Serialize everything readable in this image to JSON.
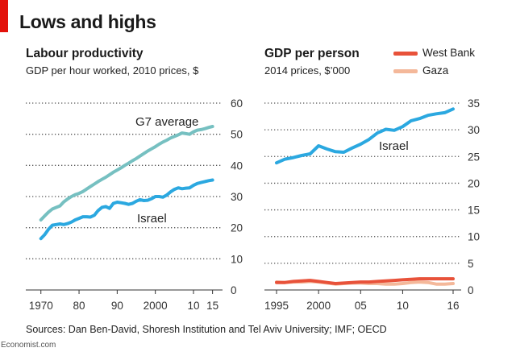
{
  "title": "Lows and highs",
  "source": "Sources: Dan Ben-David, Shoresh Institution and Tel Aviv University; IMF; OECD",
  "brand": "Economist.com",
  "colors": {
    "g7": "#76c0c1",
    "israel": "#2ba8e0",
    "west_bank": "#e8523a",
    "gaza": "#f4b89a",
    "accent": "#e3120b"
  },
  "chart_data": [
    {
      "type": "line",
      "title": "Labour productivity",
      "subtitle": "GDP per hour worked, 2010 prices, $",
      "xlabel": "",
      "ylabel": "",
      "xlim": [
        1969,
        2015.5
      ],
      "ylim": [
        0,
        60
      ],
      "x_ticks": [
        1970,
        1980,
        1990,
        2000,
        2010,
        2015
      ],
      "x_tick_labels": [
        "1970",
        "80",
        "90",
        "2000",
        "10",
        "15"
      ],
      "y_ticks": [
        0,
        10,
        20,
        30,
        40,
        50,
        60
      ],
      "y_tick_labels": [
        "0",
        "10",
        "20",
        "30",
        "40",
        "50",
        "60"
      ],
      "series": [
        {
          "name": "G7 average",
          "color_key": "g7",
          "x": [
            1970,
            1971,
            1972,
            1973,
            1974,
            1975,
            1976,
            1977,
            1978,
            1979,
            1980,
            1981,
            1982,
            1983,
            1984,
            1985,
            1986,
            1987,
            1988,
            1989,
            1990,
            1991,
            1992,
            1993,
            1994,
            1995,
            1996,
            1997,
            1998,
            1999,
            2000,
            2001,
            2002,
            2003,
            2004,
            2005,
            2006,
            2007,
            2008,
            2009,
            2010,
            2011,
            2012,
            2013,
            2014,
            2015
          ],
          "values": [
            22.5,
            23.8,
            25.0,
            26.0,
            26.5,
            27.0,
            28.3,
            29.2,
            30.0,
            30.6,
            31.0,
            31.6,
            32.4,
            33.2,
            34.0,
            34.8,
            35.5,
            36.2,
            37.0,
            37.8,
            38.5,
            39.2,
            40.0,
            40.7,
            41.5,
            42.2,
            43.0,
            43.8,
            44.6,
            45.3,
            46.0,
            46.8,
            47.5,
            48.1,
            48.8,
            49.3,
            49.8,
            50.4,
            50.2,
            50.0,
            50.8,
            51.3,
            51.5,
            51.8,
            52.2,
            52.5
          ]
        },
        {
          "name": "Israel",
          "color_key": "israel",
          "x": [
            1970,
            1971,
            1972,
            1973,
            1974,
            1975,
            1976,
            1977,
            1978,
            1979,
            1980,
            1981,
            1982,
            1983,
            1984,
            1985,
            1986,
            1987,
            1988,
            1989,
            1990,
            1991,
            1992,
            1993,
            1994,
            1995,
            1996,
            1997,
            1998,
            1999,
            2000,
            2001,
            2002,
            2003,
            2004,
            2005,
            2006,
            2007,
            2008,
            2009,
            2010,
            2011,
            2012,
            2013,
            2014,
            2015
          ],
          "values": [
            16.5,
            17.8,
            19.5,
            20.8,
            21.0,
            21.2,
            21.0,
            21.3,
            21.8,
            22.5,
            23.0,
            23.5,
            23.5,
            23.4,
            24.0,
            25.5,
            26.5,
            26.8,
            26.2,
            27.8,
            28.2,
            28.0,
            27.8,
            27.5,
            27.8,
            28.5,
            29.0,
            28.7,
            28.8,
            29.3,
            30.0,
            30.0,
            29.8,
            30.5,
            31.5,
            32.3,
            32.8,
            32.5,
            32.7,
            32.8,
            33.6,
            34.2,
            34.5,
            34.8,
            35.1,
            35.3
          ]
        }
      ],
      "annotations": [
        "G7 average",
        "Israel"
      ]
    },
    {
      "type": "line",
      "title": "GDP per person",
      "subtitle": "2014 prices, $’000",
      "xlabel": "",
      "ylabel": "",
      "xlim": [
        1995,
        2016
      ],
      "ylim": [
        0,
        35
      ],
      "x_ticks": [
        1995,
        2000,
        2005,
        2010,
        2016
      ],
      "x_tick_labels": [
        "1995",
        "2000",
        "05",
        "10",
        "16"
      ],
      "y_ticks": [
        0,
        5,
        10,
        15,
        20,
        25,
        30,
        35
      ],
      "y_tick_labels": [
        "0",
        "5",
        "10",
        "15",
        "20",
        "25",
        "30",
        "35"
      ],
      "legend": [
        "West Bank",
        "Gaza"
      ],
      "series": [
        {
          "name": "Israel",
          "color_key": "israel",
          "x": [
            1995,
            1996,
            1997,
            1998,
            1999,
            2000,
            2001,
            2002,
            2003,
            2004,
            2005,
            2006,
            2007,
            2008,
            2009,
            2010,
            2011,
            2012,
            2013,
            2014,
            2015,
            2016
          ],
          "values": [
            23.8,
            24.5,
            24.8,
            25.2,
            25.5,
            27.0,
            26.4,
            25.9,
            25.8,
            26.6,
            27.3,
            28.2,
            29.4,
            30.1,
            29.9,
            30.6,
            31.7,
            32.1,
            32.7,
            33.0,
            33.2,
            33.9
          ]
        },
        {
          "name": "West Bank",
          "color_key": "west_bank",
          "x": [
            1995,
            1996,
            1997,
            1998,
            1999,
            2000,
            2001,
            2002,
            2003,
            2004,
            2005,
            2006,
            2007,
            2008,
            2009,
            2010,
            2011,
            2012,
            2013,
            2014,
            2015,
            2016
          ],
          "values": [
            1.4,
            1.4,
            1.6,
            1.7,
            1.8,
            1.6,
            1.4,
            1.2,
            1.3,
            1.4,
            1.5,
            1.5,
            1.6,
            1.7,
            1.8,
            1.9,
            2.0,
            2.1,
            2.1,
            2.1,
            2.1,
            2.1
          ]
        },
        {
          "name": "Gaza",
          "color_key": "gaza",
          "x": [
            1995,
            1996,
            1997,
            1998,
            1999,
            2000,
            2001,
            2002,
            2003,
            2004,
            2005,
            2006,
            2007,
            2008,
            2009,
            2010,
            2011,
            2012,
            2013,
            2014,
            2015,
            2016
          ],
          "values": [
            1.5,
            1.4,
            1.5,
            1.5,
            1.6,
            1.5,
            1.3,
            1.1,
            1.2,
            1.3,
            1.3,
            1.2,
            1.2,
            1.1,
            1.1,
            1.2,
            1.4,
            1.5,
            1.4,
            1.1,
            1.1,
            1.2
          ]
        }
      ],
      "annotations": [
        "Israel"
      ]
    }
  ]
}
